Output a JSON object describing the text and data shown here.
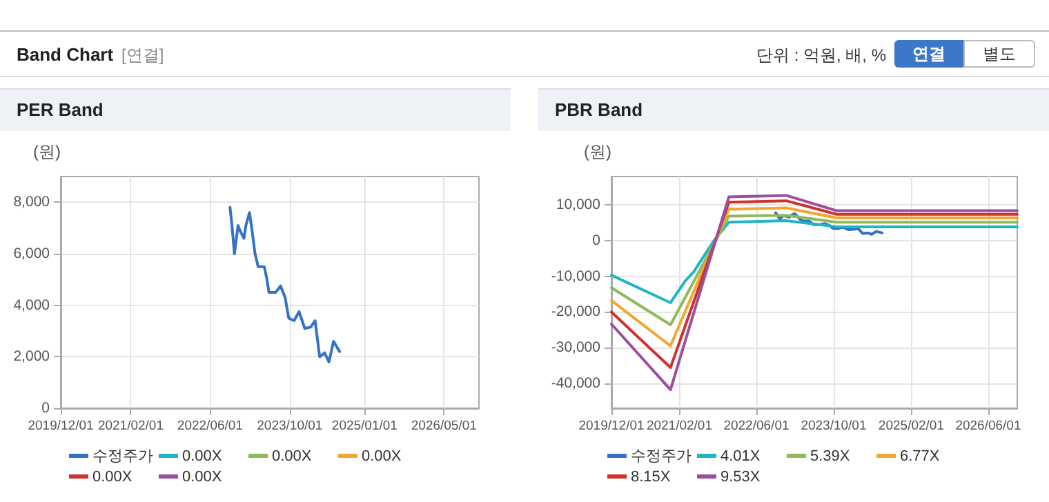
{
  "chart_data": [
    {
      "type": "other",
      "title": "Band Chart",
      "annotations": [
        "[연결]",
        "단위 : 억원, 배, %",
        "연결",
        "별도"
      ]
    },
    {
      "type": "line",
      "title": "PER Band",
      "ylabel": "(원)",
      "xlim": [
        "2019-12-01",
        "2026-12-01"
      ],
      "ylim": [
        0,
        9000
      ],
      "xticks": [
        {
          "value": "2019-12-01",
          "label": "2019/12/01"
        },
        {
          "value": "2021-02-01",
          "label": "2021/02/01"
        },
        {
          "value": "2022-06-01",
          "label": "2022/06/01"
        },
        {
          "value": "2023-10-01",
          "label": "2023/10/01"
        },
        {
          "value": "2025-01-01",
          "label": "2025/01/01"
        },
        {
          "value": "2026-05-01",
          "label": "2026/05/01"
        }
      ],
      "yticks": [
        0,
        {
          "value": 2000,
          "label": "2,000"
        },
        {
          "value": 4000,
          "label": "4,000"
        },
        {
          "value": 6000,
          "label": "6,000"
        },
        {
          "value": 8000,
          "label": "8,000"
        }
      ],
      "grid": true,
      "legend": "bottom",
      "marker": "none",
      "line_style": "solid",
      "series": [
        {
          "name": "수정주가",
          "color": "#3572c6",
          "x": [
            "2022-10-01",
            "2022-10-13",
            "2022-10-28",
            "2022-11-06",
            "2022-11-19",
            "2022-12-01",
            "2022-12-25",
            "2023-01-06",
            "2023-01-28",
            "2023-02-13",
            "2023-03-03",
            "2023-03-22",
            "2023-04-28",
            "2023-05-12",
            "2023-05-27",
            "2023-07-07",
            "2023-08-06",
            "2023-09-03",
            "2023-09-25",
            "2023-10-28",
            "2023-11-27",
            "2024-01-01",
            "2024-02-06",
            "2024-03-04",
            "2024-04-01",
            "2024-05-01",
            "2024-05-28",
            "2024-06-25",
            "2024-08-01"
          ],
          "values": [
            7800,
            7100,
            6000,
            6450,
            7100,
            6900,
            6600,
            7100,
            7600,
            6900,
            6000,
            5500,
            5500,
            5100,
            4500,
            4500,
            4750,
            4300,
            3500,
            3400,
            3750,
            3100,
            3150,
            3400,
            2000,
            2150,
            1800,
            2600,
            2200
          ]
        },
        {
          "name": "0.00X",
          "color": "#1fb5c4"
        },
        {
          "name": "0.00X",
          "color": "#8fba5a"
        },
        {
          "name": "0.00X",
          "color": "#f0a830"
        },
        {
          "name": "0.00X",
          "color": "#d0312d"
        },
        {
          "name": "0.00X",
          "color": "#9a4fa0"
        }
      ]
    },
    {
      "type": "line",
      "title": "PBR Band",
      "ylabel": "(원)",
      "xlim": [
        "2019-12-01",
        "2026-12-01"
      ],
      "ylim": [
        -47000,
        18000
      ],
      "xticks": [
        {
          "value": "2019-12-01",
          "label": "2019/12/01"
        },
        {
          "value": "2021-02-01",
          "label": "2021/02/01"
        },
        {
          "value": "2022-06-01",
          "label": "2022/06/01"
        },
        {
          "value": "2023-10-01",
          "label": "2023/10/01"
        },
        {
          "value": "2025-02-01",
          "label": "2025/02/01"
        },
        {
          "value": "2026-06-01",
          "label": "2026/06/01"
        }
      ],
      "yticks": [
        {
          "value": -40000,
          "label": "-40,000"
        },
        {
          "value": -30000,
          "label": "-30,000"
        },
        {
          "value": -20000,
          "label": "-20,000"
        },
        {
          "value": -10000,
          "label": "-10,000"
        },
        0,
        {
          "value": 10000,
          "label": "10,000"
        }
      ],
      "grid": true,
      "legend": "bottom",
      "marker": "none",
      "line_style": "solid",
      "series": [
        {
          "name": "수정주가",
          "color": "#3572c6",
          "x": [
            "2022-10-01",
            "2022-10-13",
            "2022-10-28",
            "2022-11-06",
            "2022-11-19",
            "2022-12-01",
            "2022-12-25",
            "2023-01-06",
            "2023-01-28",
            "2023-02-13",
            "2023-03-03",
            "2023-03-22",
            "2023-04-28",
            "2023-05-12",
            "2023-05-27",
            "2023-07-07",
            "2023-08-06",
            "2023-09-03",
            "2023-09-25",
            "2023-10-28",
            "2023-11-27",
            "2024-01-01",
            "2024-02-06",
            "2024-03-04",
            "2024-04-01",
            "2024-05-01",
            "2024-05-28",
            "2024-06-25",
            "2024-08-01"
          ],
          "values": [
            7800,
            7100,
            6000,
            6500,
            7100,
            6900,
            6600,
            7100,
            7600,
            6900,
            6000,
            5500,
            5500,
            5100,
            4500,
            4500,
            4800,
            4300,
            3500,
            3400,
            3800,
            3100,
            3200,
            3400,
            2000,
            2200,
            1800,
            2600,
            2200
          ]
        },
        {
          "name": "4.01X",
          "color": "#1fb5c4",
          "x": [
            "2019-12-01",
            "2020-12-07",
            "2021-03-10",
            "2021-05-01",
            "2021-09-07",
            "2021-12-10",
            "2022-12-06",
            "2023-10-20",
            "2026-12-01"
          ],
          "values": [
            -9700,
            -17400,
            -11300,
            -8800,
            0,
            5200,
            5600,
            3900,
            3900
          ]
        },
        {
          "name": "5.39X",
          "color": "#8fba5a",
          "x": [
            "2019-12-01",
            "2020-12-07",
            "2021-12-10",
            "2022-12-06",
            "2023-10-20",
            "2026-12-01"
          ],
          "values": [
            -13200,
            -23600,
            6900,
            7100,
            5200,
            5200
          ]
        },
        {
          "name": "6.77X",
          "color": "#f0a830",
          "x": [
            "2019-12-01",
            "2020-12-07",
            "2021-12-10",
            "2022-12-06",
            "2023-10-20",
            "2026-12-01"
          ],
          "values": [
            -16800,
            -29500,
            8800,
            9200,
            6400,
            6400
          ]
        },
        {
          "name": "8.15X",
          "color": "#d0312d",
          "x": [
            "2019-12-01",
            "2020-12-07",
            "2021-12-10",
            "2022-12-06",
            "2023-10-20",
            "2026-12-01"
          ],
          "values": [
            -20000,
            -35600,
            10800,
            11200,
            7400,
            7400
          ]
        },
        {
          "name": "9.53X",
          "color": "#9a4fa0",
          "x": [
            "2019-12-01",
            "2020-12-07",
            "2021-12-10",
            "2022-12-06",
            "2023-10-20",
            "2026-12-01"
          ],
          "values": [
            -23400,
            -41800,
            12300,
            12700,
            8400,
            8400
          ]
        }
      ]
    }
  ]
}
